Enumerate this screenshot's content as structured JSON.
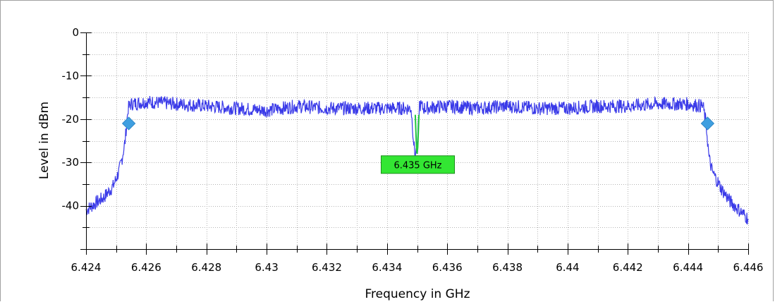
{
  "chart_data": {
    "type": "line",
    "title": "",
    "xlabel": "Frequency in GHz",
    "ylabel": "Level in dBm",
    "xlim": [
      6.424,
      6.446
    ],
    "ylim": [
      -50,
      0
    ],
    "x_ticks": [
      "6.424",
      "6.426",
      "6.428",
      "6.43",
      "6.432",
      "6.434",
      "6.436",
      "6.438",
      "6.44",
      "6.442",
      "6.444",
      "6.446"
    ],
    "y_ticks": [
      "0",
      "-10",
      "-20",
      "-30",
      "-40"
    ],
    "grid": true,
    "series": [
      {
        "color": "#3a3ae8",
        "x": [
          6.424,
          6.4243,
          6.4246,
          6.4249,
          6.4251,
          6.4252,
          6.4253,
          6.42535,
          6.4254,
          6.4255,
          6.426,
          6.427,
          6.428,
          6.429,
          6.43,
          6.431,
          6.432,
          6.433,
          6.434,
          6.4348,
          6.43492,
          6.435,
          6.43508,
          6.4352,
          6.436,
          6.437,
          6.438,
          6.439,
          6.44,
          6.441,
          6.442,
          6.443,
          6.444,
          6.4445,
          6.4446,
          6.44465,
          6.4447,
          6.4448,
          6.4451,
          6.4454,
          6.4457,
          6.446
        ],
        "y": [
          -41,
          -39.5,
          -38,
          -35.5,
          -32,
          -29,
          -25,
          -21,
          -17.5,
          -16.5,
          -16,
          -16.5,
          -17,
          -17.5,
          -18,
          -17,
          -17.5,
          -17.5,
          -17.5,
          -17.5,
          -28,
          -27,
          -16.5,
          -17.5,
          -17,
          -17.5,
          -17,
          -17.5,
          -17.5,
          -17,
          -17,
          -16.5,
          -16.5,
          -17,
          -21,
          -25,
          -29,
          -32,
          -36,
          -39,
          -41,
          -43
        ]
      },
      {
        "color": "#22c83c",
        "x": [
          6.43494,
          6.43496,
          6.43498,
          6.435,
          6.43502,
          6.43504,
          6.43506
        ],
        "y": [
          -19,
          -23,
          -26.5,
          -28,
          -26.5,
          -23,
          -19
        ]
      }
    ],
    "markers": [
      {
        "x": 6.42542,
        "y": -21,
        "color": "#3f9fe0"
      },
      {
        "x": 6.44465,
        "y": -21,
        "color": "#3f9fe0"
      }
    ],
    "annotations": [
      {
        "text": "6.435 GHz",
        "x": 6.435,
        "y": -30.5,
        "color": "#33e633"
      }
    ]
  }
}
